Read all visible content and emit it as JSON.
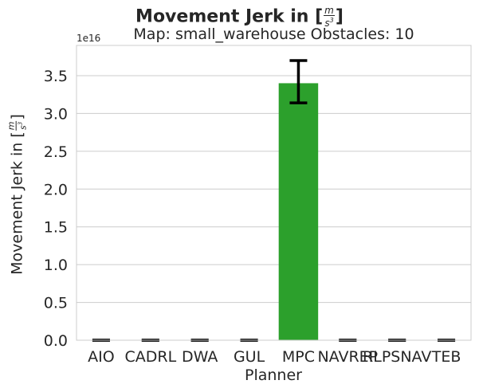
{
  "chart_data": {
    "type": "bar",
    "title": "Movement Jerk in [",
    "title_unit_num": "m",
    "title_unit_den": "s",
    "title_unit_exp": "3",
    "title_close": "]",
    "subtitle": "Map: small_warehouse Obstacles: 10",
    "xlabel": "Planner",
    "ylabel": "Movement Jerk in [",
    "ylabel_unit_num": "m",
    "ylabel_unit_den": "s",
    "ylabel_unit_exp": "3",
    "ylabel_close": "]",
    "offset_text": "1e16",
    "categories": [
      "AIO",
      "CADRL",
      "DWA",
      "GUL",
      "MPC",
      "NAVREP",
      "RLPSNAV",
      "TEB"
    ],
    "values": [
      0,
      0,
      0,
      0,
      3.4e+16,
      0,
      0,
      0
    ],
    "error_low": [
      0,
      0,
      0,
      0,
      3.14e+16,
      0,
      0,
      0
    ],
    "error_high": [
      0,
      0,
      0,
      0,
      3.7e+16,
      0,
      0,
      0
    ],
    "ylim": [
      0,
      3.9e+16
    ],
    "yticks": [
      0,
      5000000000000000.0,
      1e+16,
      1.5e+16,
      2e+16,
      2.5e+16,
      3e+16,
      3.5e+16
    ],
    "ytick_labels": [
      "0.0",
      "0.5",
      "1.0",
      "1.5",
      "2.0",
      "2.5",
      "3.0",
      "3.5"
    ],
    "grid": "horizontal",
    "colors": {
      "bar": "#2ca02c",
      "errorbar": "#000000",
      "grid": "#cccccc",
      "axis": "#cccccc",
      "text": "#262626"
    }
  }
}
